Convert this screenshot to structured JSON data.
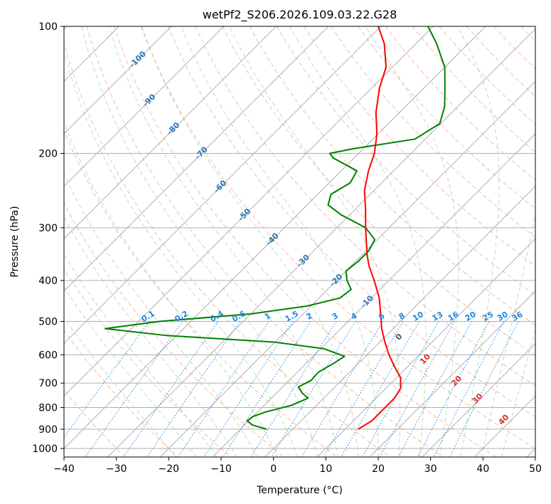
{
  "chart_data": {
    "type": "skew-t",
    "title": "wetPf2_S206.2026.109.03.22.G28",
    "xlabel": "Temperature (°C)",
    "ylabel": "Pressure (hPa)",
    "xlim": [
      -40,
      50
    ],
    "ylim": [
      1050,
      100
    ],
    "y_scale": "log",
    "grid": true,
    "x_ticks": [
      "−40",
      "−30",
      "−20",
      "−10",
      "0",
      "10",
      "20",
      "30",
      "40",
      "50"
    ],
    "y_ticks": [
      1000,
      900,
      800,
      700,
      600,
      500,
      400,
      300,
      200,
      100
    ],
    "temperature_profile": {
      "color": "#ff0000",
      "points": [
        {
          "p": 900,
          "t": 12.5
        },
        {
          "p": 860,
          "t": 13.5
        },
        {
          "p": 810,
          "t": 13.5
        },
        {
          "p": 760,
          "t": 13.5
        },
        {
          "p": 720,
          "t": 12.8
        },
        {
          "p": 680,
          "t": 10.8
        },
        {
          "p": 640,
          "t": 7.5
        },
        {
          "p": 600,
          "t": 4.2
        },
        {
          "p": 560,
          "t": 1.0
        },
        {
          "p": 520,
          "t": -2.2
        },
        {
          "p": 480,
          "t": -5.2
        },
        {
          "p": 440,
          "t": -8.5
        },
        {
          "p": 400,
          "t": -12.8
        },
        {
          "p": 370,
          "t": -16.5
        },
        {
          "p": 350,
          "t": -18.8
        },
        {
          "p": 330,
          "t": -21.0
        },
        {
          "p": 300,
          "t": -24.5
        },
        {
          "p": 270,
          "t": -28.2
        },
        {
          "p": 245,
          "t": -31.8
        },
        {
          "p": 220,
          "t": -34.8
        },
        {
          "p": 200,
          "t": -37.0
        },
        {
          "p": 180,
          "t": -40.2
        },
        {
          "p": 160,
          "t": -44.5
        },
        {
          "p": 140,
          "t": -48.5
        },
        {
          "p": 125,
          "t": -51.2
        },
        {
          "p": 110,
          "t": -56.0
        },
        {
          "p": 100,
          "t": -60.5
        }
      ]
    },
    "dewpoint_profile": {
      "color": "#008000",
      "points": [
        {
          "p": 900,
          "t": -5.0
        },
        {
          "p": 880,
          "t": -8.5
        },
        {
          "p": 860,
          "t": -10.3
        },
        {
          "p": 840,
          "t": -10.0
        },
        {
          "p": 820,
          "t": -8.5
        },
        {
          "p": 790,
          "t": -4.8
        },
        {
          "p": 760,
          "t": -3.0
        },
        {
          "p": 740,
          "t": -5.0
        },
        {
          "p": 715,
          "t": -7.0
        },
        {
          "p": 690,
          "t": -5.8
        },
        {
          "p": 660,
          "t": -6.0
        },
        {
          "p": 630,
          "t": -4.8
        },
        {
          "p": 605,
          "t": -4.0
        },
        {
          "p": 580,
          "t": -9.5
        },
        {
          "p": 560,
          "t": -20.0
        },
        {
          "p": 540,
          "t": -42.0
        },
        {
          "p": 520,
          "t": -55.0
        },
        {
          "p": 500,
          "t": -46.0
        },
        {
          "p": 480,
          "t": -30.0
        },
        {
          "p": 460,
          "t": -20.8
        },
        {
          "p": 440,
          "t": -16.0
        },
        {
          "p": 420,
          "t": -15.5
        },
        {
          "p": 400,
          "t": -18.0
        },
        {
          "p": 380,
          "t": -20.0
        },
        {
          "p": 360,
          "t": -19.5
        },
        {
          "p": 340,
          "t": -19.5
        },
        {
          "p": 320,
          "t": -20.5
        },
        {
          "p": 300,
          "t": -24.5
        },
        {
          "p": 280,
          "t": -31.5
        },
        {
          "p": 265,
          "t": -36.0
        },
        {
          "p": 250,
          "t": -37.5
        },
        {
          "p": 235,
          "t": -36.0
        },
        {
          "p": 220,
          "t": -37.0
        },
        {
          "p": 205,
          "t": -44.0
        },
        {
          "p": 200,
          "t": -45.5
        },
        {
          "p": 195,
          "t": -42.0
        },
        {
          "p": 185,
          "t": -32.0
        },
        {
          "p": 170,
          "t": -30.2
        },
        {
          "p": 155,
          "t": -32.5
        },
        {
          "p": 140,
          "t": -36.0
        },
        {
          "p": 125,
          "t": -40.0
        },
        {
          "p": 110,
          "t": -46.0
        },
        {
          "p": 100,
          "t": -51.0
        }
      ]
    },
    "skew_isotherm_labels": [
      "-100",
      "-90",
      "-80",
      "-70",
      "-60",
      "-50",
      "-40",
      "-30",
      "-20",
      "-10"
    ],
    "mixing_ratio_labels": [
      "0.1",
      "0.2",
      "0.4",
      "0.6",
      "1",
      "1.5",
      "2",
      "3",
      "4",
      "6",
      "8",
      "10",
      "13",
      "16",
      "20",
      "25",
      "30",
      "36"
    ],
    "moist_adiabat_labels": [
      "0",
      "10",
      "20",
      "30",
      "40"
    ]
  }
}
